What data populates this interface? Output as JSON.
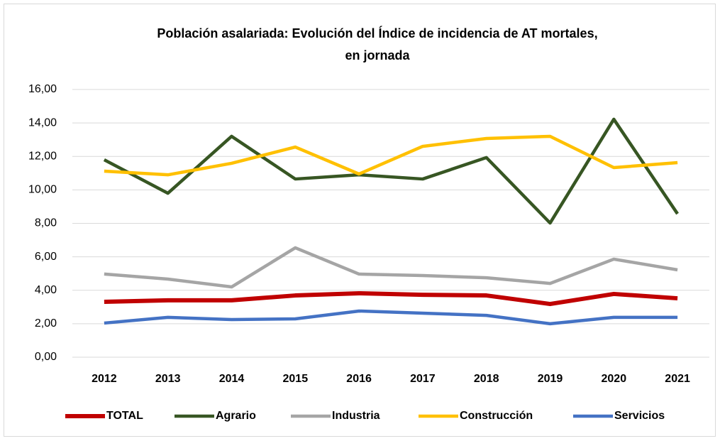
{
  "chart_data": {
    "type": "line",
    "title": [
      "Población asalariada: Evolución del Índice de incidencia de AT mortales,",
      "en jornada"
    ],
    "categories": [
      "2012",
      "2013",
      "2014",
      "2015",
      "2016",
      "2017",
      "2018",
      "2019",
      "2020",
      "2021"
    ],
    "series": [
      {
        "name": "TOTAL",
        "color": "#c00000",
        "values": [
          3.31,
          3.4,
          3.4,
          3.69,
          3.82,
          3.73,
          3.69,
          3.18,
          3.78,
          3.52
        ]
      },
      {
        "name": "Agrario",
        "color": "#375623",
        "values": [
          11.8,
          9.8,
          13.2,
          10.65,
          10.9,
          10.65,
          11.93,
          8.02,
          14.22,
          8.57
        ]
      },
      {
        "name": "Industria",
        "color": "#a5a5a5",
        "values": [
          4.97,
          4.67,
          4.2,
          6.54,
          4.97,
          4.88,
          4.75,
          4.41,
          5.86,
          5.22
        ]
      },
      {
        "name": "Construcción",
        "color": "#ffc000",
        "values": [
          11.12,
          10.9,
          11.59,
          12.56,
          10.95,
          12.6,
          13.07,
          13.2,
          11.33,
          11.63
        ]
      },
      {
        "name": "Servicios",
        "color": "#4472c4",
        "values": [
          2.04,
          2.38,
          2.25,
          2.29,
          2.76,
          2.63,
          2.5,
          2.0,
          2.38,
          2.38
        ]
      }
    ],
    "ylim": [
      0,
      16
    ],
    "yticks": [
      {
        "value": 0,
        "label": "0,00"
      },
      {
        "value": 2,
        "label": "2,00"
      },
      {
        "value": 4,
        "label": "4,00"
      },
      {
        "value": 6,
        "label": "6,00"
      },
      {
        "value": 8,
        "label": "8,00"
      },
      {
        "value": 10,
        "label": "10,00"
      },
      {
        "value": 12,
        "label": "12,00"
      },
      {
        "value": 14,
        "label": "14,00"
      },
      {
        "value": 16,
        "label": "16,00"
      }
    ],
    "grid": true,
    "legend": "bottom"
  }
}
